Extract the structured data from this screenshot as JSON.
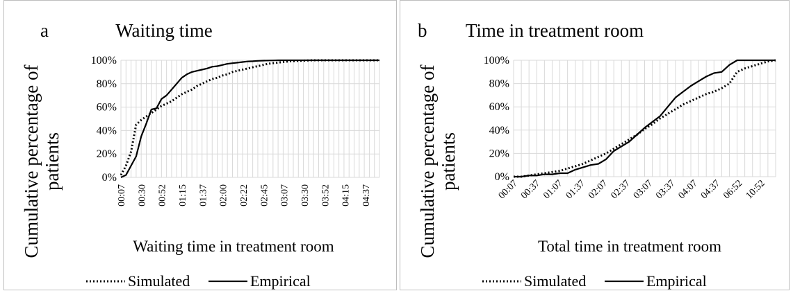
{
  "chart_data": [
    {
      "panel_label": "a",
      "type": "line",
      "title": "Waiting time",
      "xlabel": "Waiting time in treatment room",
      "ylabel_lines": [
        "Cumulative percentage of",
        "patients"
      ],
      "ylim": [
        0,
        1
      ],
      "yticks": [
        "0%",
        "20%",
        "40%",
        "60%",
        "80%",
        "100%"
      ],
      "x_tick_labels": [
        "00:07",
        "00:30",
        "00:52",
        "01:15",
        "01:37",
        "02:00",
        "02:22",
        "02:45",
        "03:07",
        "03:30",
        "03:52",
        "04:15",
        "04:37"
      ],
      "grid": true,
      "legend_placement": "bottom",
      "series": [
        {
          "name": "Simulated",
          "style": "dotted",
          "points": [
            [
              0,
              0.02
            ],
            [
              1,
              0.1
            ],
            [
              2,
              0.22
            ],
            [
              3,
              0.45
            ],
            [
              4,
              0.49
            ],
            [
              5,
              0.52
            ],
            [
              6,
              0.55
            ],
            [
              7,
              0.58
            ],
            [
              8,
              0.61
            ],
            [
              9,
              0.63
            ],
            [
              10,
              0.65
            ],
            [
              11,
              0.68
            ],
            [
              12,
              0.71
            ],
            [
              13,
              0.73
            ],
            [
              14,
              0.75
            ],
            [
              15,
              0.78
            ],
            [
              16,
              0.8
            ],
            [
              17,
              0.82
            ],
            [
              18,
              0.84
            ],
            [
              19,
              0.85
            ],
            [
              20,
              0.87
            ],
            [
              21,
              0.88
            ],
            [
              22,
              0.9
            ],
            [
              23,
              0.91
            ],
            [
              24,
              0.92
            ],
            [
              25,
              0.93
            ],
            [
              26,
              0.94
            ],
            [
              27,
              0.95
            ],
            [
              28,
              0.96
            ],
            [
              29,
              0.97
            ],
            [
              30,
              0.975
            ],
            [
              31,
              0.98
            ],
            [
              32,
              0.985
            ],
            [
              33,
              0.99
            ],
            [
              34,
              0.993
            ],
            [
              35,
              0.995
            ],
            [
              36,
              0.997
            ],
            [
              37,
              0.999
            ],
            [
              38,
              1
            ],
            [
              39,
              1
            ],
            [
              40,
              1
            ],
            [
              41,
              1
            ],
            [
              42,
              1
            ],
            [
              43,
              1
            ],
            [
              44,
              1
            ],
            [
              45,
              1
            ],
            [
              46,
              1
            ],
            [
              47,
              1
            ],
            [
              48,
              1
            ],
            [
              49,
              1
            ],
            [
              50,
              1
            ],
            [
              51,
              1
            ]
          ]
        },
        {
          "name": "Empirical",
          "style": "solid",
          "points": [
            [
              0,
              0
            ],
            [
              1,
              0.02
            ],
            [
              2,
              0.1
            ],
            [
              3,
              0.18
            ],
            [
              4,
              0.35
            ],
            [
              5,
              0.46
            ],
            [
              6,
              0.58
            ],
            [
              7,
              0.59
            ],
            [
              8,
              0.67
            ],
            [
              9,
              0.7
            ],
            [
              10,
              0.75
            ],
            [
              11,
              0.8
            ],
            [
              12,
              0.85
            ],
            [
              13,
              0.88
            ],
            [
              14,
              0.9
            ],
            [
              15,
              0.91
            ],
            [
              16,
              0.92
            ],
            [
              17,
              0.93
            ],
            [
              18,
              0.945
            ],
            [
              19,
              0.95
            ],
            [
              20,
              0.96
            ],
            [
              21,
              0.97
            ],
            [
              22,
              0.975
            ],
            [
              23,
              0.98
            ],
            [
              24,
              0.985
            ],
            [
              25,
              0.99
            ],
            [
              26,
              0.992
            ],
            [
              27,
              0.995
            ],
            [
              28,
              0.997
            ],
            [
              29,
              0.998
            ],
            [
              30,
              0.999
            ],
            [
              31,
              1
            ],
            [
              32,
              1
            ],
            [
              33,
              1
            ],
            [
              34,
              1
            ],
            [
              35,
              1
            ],
            [
              36,
              1
            ],
            [
              37,
              1
            ],
            [
              38,
              1
            ],
            [
              39,
              1
            ],
            [
              40,
              1
            ],
            [
              41,
              1
            ],
            [
              42,
              1
            ],
            [
              43,
              1
            ],
            [
              44,
              1
            ],
            [
              45,
              1
            ],
            [
              46,
              1
            ],
            [
              47,
              1
            ],
            [
              48,
              1
            ],
            [
              49,
              1
            ],
            [
              50,
              1
            ],
            [
              51,
              1
            ]
          ]
        }
      ]
    },
    {
      "panel_label": "b",
      "type": "line",
      "title": "Time in treatment room",
      "xlabel": "Total time in treatment room",
      "ylabel_lines": [
        "Cumulative percentage of",
        "patients"
      ],
      "ylim": [
        0,
        1
      ],
      "yticks": [
        "0%",
        "20%",
        "40%",
        "60%",
        "80%",
        "100%"
      ],
      "x_tick_labels": [
        "00:07",
        "00:37",
        "01:07",
        "01:37",
        "02:07",
        "02:37",
        "03:07",
        "03:37",
        "04:07",
        "04:37",
        "06:52",
        "10:52"
      ],
      "grid": true,
      "legend_placement": "bottom",
      "series": [
        {
          "name": "Simulated",
          "style": "dotted",
          "points": [
            [
              0,
              0
            ],
            [
              1,
              0
            ],
            [
              2,
              0.01
            ],
            [
              3,
              0.02
            ],
            [
              4,
              0.03
            ],
            [
              5,
              0.04
            ],
            [
              6,
              0.05
            ],
            [
              7,
              0.07
            ],
            [
              8,
              0.09
            ],
            [
              9,
              0.11
            ],
            [
              10,
              0.14
            ],
            [
              11,
              0.17
            ],
            [
              12,
              0.2
            ],
            [
              13,
              0.24
            ],
            [
              14,
              0.28
            ],
            [
              15,
              0.32
            ],
            [
              16,
              0.36
            ],
            [
              17,
              0.41
            ],
            [
              18,
              0.45
            ],
            [
              19,
              0.5
            ],
            [
              20,
              0.54
            ],
            [
              21,
              0.58
            ],
            [
              22,
              0.62
            ],
            [
              23,
              0.65
            ],
            [
              24,
              0.68
            ],
            [
              25,
              0.71
            ],
            [
              26,
              0.73
            ],
            [
              27,
              0.76
            ],
            [
              28,
              0.8
            ],
            [
              29,
              0.9
            ],
            [
              30,
              0.93
            ],
            [
              31,
              0.95
            ],
            [
              32,
              0.97
            ],
            [
              33,
              0.99
            ],
            [
              34,
              1
            ]
          ]
        },
        {
          "name": "Empirical",
          "style": "solid",
          "points": [
            [
              0,
              0
            ],
            [
              1,
              0
            ],
            [
              2,
              0.01
            ],
            [
              3,
              0.01
            ],
            [
              4,
              0.02
            ],
            [
              5,
              0.02
            ],
            [
              6,
              0.03
            ],
            [
              7,
              0.03
            ],
            [
              8,
              0.06
            ],
            [
              9,
              0.08
            ],
            [
              10,
              0.1
            ],
            [
              11,
              0.11
            ],
            [
              12,
              0.15
            ],
            [
              13,
              0.22
            ],
            [
              14,
              0.26
            ],
            [
              15,
              0.3
            ],
            [
              16,
              0.36
            ],
            [
              17,
              0.42
            ],
            [
              18,
              0.47
            ],
            [
              19,
              0.52
            ],
            [
              20,
              0.6
            ],
            [
              21,
              0.68
            ],
            [
              22,
              0.73
            ],
            [
              23,
              0.78
            ],
            [
              24,
              0.82
            ],
            [
              25,
              0.86
            ],
            [
              26,
              0.89
            ],
            [
              27,
              0.9
            ],
            [
              28,
              0.96
            ],
            [
              29,
              1
            ],
            [
              30,
              1
            ],
            [
              31,
              1
            ],
            [
              32,
              1
            ],
            [
              33,
              1
            ],
            [
              34,
              1
            ]
          ]
        }
      ]
    }
  ]
}
